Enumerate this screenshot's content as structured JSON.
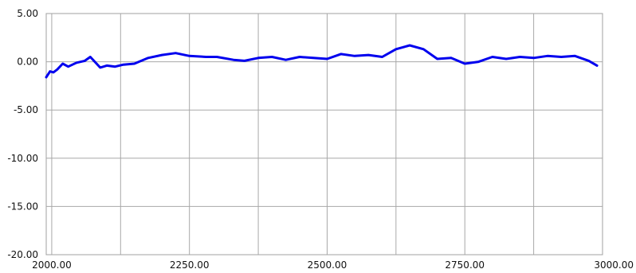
{
  "chart_data": {
    "type": "line",
    "title": "",
    "xlabel": "",
    "ylabel": "",
    "xlim": [
      1990,
      3000
    ],
    "ylim": [
      -20,
      5
    ],
    "x_ticks": [
      2000,
      2250,
      2500,
      2750,
      3000
    ],
    "y_ticks": [
      5,
      0,
      -5,
      -10,
      -15,
      -20
    ],
    "x_tick_labels": [
      "2000.00",
      "2250.00",
      "2500.00",
      "2750.00",
      "3000.00"
    ],
    "y_tick_labels": [
      "5.00",
      "0.00",
      "-5.00",
      "-10.00",
      "-15.00",
      "-20.00"
    ],
    "grid": true,
    "legend": "none",
    "colors": {
      "line": "#0000ee",
      "grid": "#a8a8a8",
      "frame": "#a0a0a0",
      "background": "#ffffff"
    },
    "series": [
      {
        "x": [
          1990,
          1997,
          2003,
          2010,
          2020,
          2030,
          2045,
          2060,
          2070,
          2088,
          2100,
          2115,
          2130,
          2150,
          2175,
          2200,
          2225,
          2250,
          2280,
          2300,
          2330,
          2350,
          2375,
          2400,
          2425,
          2450,
          2475,
          2500,
          2525,
          2550,
          2575,
          2600,
          2625,
          2650,
          2675,
          2700,
          2725,
          2750,
          2775,
          2800,
          2825,
          2850,
          2875,
          2900,
          2925,
          2950,
          2975,
          2990
        ],
        "y": [
          -1.6,
          -1.0,
          -1.1,
          -0.8,
          -0.2,
          -0.5,
          -0.1,
          0.1,
          0.5,
          -0.6,
          -0.4,
          -0.5,
          -0.3,
          -0.2,
          0.4,
          0.7,
          0.9,
          0.6,
          0.5,
          0.5,
          0.2,
          0.1,
          0.4,
          0.5,
          0.2,
          0.5,
          0.4,
          0.3,
          0.8,
          0.6,
          0.7,
          0.5,
          1.3,
          1.7,
          1.3,
          0.3,
          0.4,
          -0.2,
          0.0,
          0.5,
          0.3,
          0.5,
          0.4,
          0.6,
          0.5,
          0.6,
          0.1,
          -0.4
        ]
      }
    ]
  }
}
